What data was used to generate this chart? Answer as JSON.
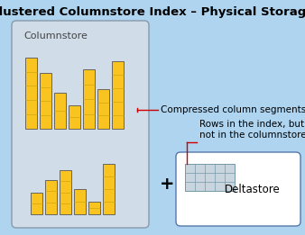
{
  "title": "Clustered Columnstore Index – Physical Storage",
  "bg_color": "#aed4f0",
  "columnstore_label": "Columnstore",
  "columnstore_box_color": "#d0dce8",
  "bar_fill": "#f9c320",
  "bar_edge": "#555555",
  "bar_seg_color": "#c8a010",
  "compressed_label": "Compressed column segments",
  "deltastore_label": "Deltastore",
  "rows_label": "Rows in the index, but\nnot in the columnstore",
  "plus_symbol": "+",
  "group1_bars": [
    0.9,
    0.7,
    0.45,
    0.3,
    0.75,
    0.5,
    0.85
  ],
  "group2_bars": [
    0.35,
    0.55,
    0.7,
    0.4,
    0.2,
    0.8
  ],
  "deltastore_rows": 3,
  "deltastore_cols": 5,
  "annotation_color": "#cc0000",
  "title_fontsize": 9.5,
  "label_fontsize": 8,
  "annot_fontsize": 7.5
}
